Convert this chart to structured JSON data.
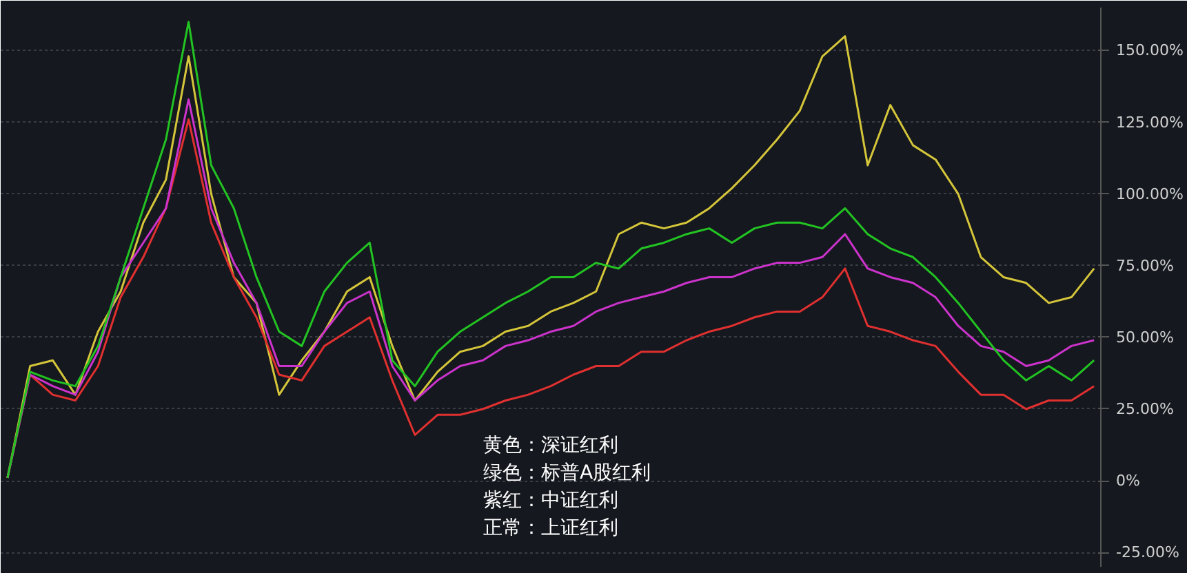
{
  "chart_data": {
    "type": "line",
    "categories": [
      null,
      null,
      null,
      null,
      null,
      null,
      null,
      null,
      null,
      null,
      null,
      null,
      null,
      null,
      null,
      null,
      null,
      null,
      null,
      null,
      null,
      null,
      null,
      null,
      null,
      null,
      null,
      null,
      null,
      null,
      null,
      null,
      null,
      null,
      null,
      null,
      null,
      null,
      null,
      null,
      null,
      null,
      null,
      null,
      null,
      null,
      null,
      null,
      null
    ],
    "series": [
      {
        "color": "#d4c53a",
        "values": [
          1,
          40,
          42,
          30,
          52,
          66,
          90,
          105,
          148,
          100,
          71,
          62,
          30,
          42,
          52,
          66,
          71,
          47,
          28,
          38,
          45,
          47,
          52,
          54,
          59,
          62,
          66,
          86,
          90,
          88,
          90,
          95,
          102,
          110,
          119,
          129,
          148,
          155,
          110,
          131,
          117,
          112,
          100,
          78,
          71,
          69,
          62,
          64,
          74
        ]
      },
      {
        "color": "#e03030",
        "values": [
          1,
          37,
          30,
          28,
          40,
          64,
          78,
          95,
          126,
          90,
          71,
          57,
          37,
          35,
          47,
          52,
          57,
          35,
          16,
          23,
          23,
          25,
          28,
          30,
          33,
          37,
          40,
          40,
          45,
          45,
          49,
          52,
          54,
          57,
          59,
          59,
          64,
          74,
          54,
          52,
          49,
          47,
          38,
          30,
          30,
          25,
          28,
          28,
          33
        ]
      },
      {
        "color": "#cc33cc",
        "values": [
          1,
          37,
          33,
          30,
          45,
          71,
          83,
          95,
          133,
          95,
          76,
          62,
          40,
          40,
          52,
          62,
          66,
          40,
          28,
          35,
          40,
          42,
          47,
          49,
          52,
          54,
          59,
          62,
          64,
          66,
          69,
          71,
          71,
          74,
          76,
          76,
          78,
          86,
          74,
          71,
          69,
          64,
          54,
          47,
          45,
          40,
          42,
          47,
          49
        ]
      },
      {
        "color": "#22c322",
        "values": [
          1,
          38,
          35,
          33,
          47,
          71,
          95,
          119,
          160,
          110,
          95,
          71,
          52,
          47,
          66,
          76,
          83,
          42,
          33,
          45,
          52,
          57,
          62,
          66,
          71,
          71,
          76,
          74,
          81,
          83,
          86,
          88,
          83,
          88,
          90,
          90,
          88,
          95,
          86,
          81,
          78,
          71,
          62,
          52,
          42,
          35,
          40,
          35,
          42
        ]
      }
    ],
    "ylim": [
      -30,
      165
    ],
    "yticks": [
      {
        "value": -25,
        "label": "-25.00%"
      },
      {
        "value": 0,
        "label": "0%"
      },
      {
        "value": 25,
        "label": "25.00%"
      },
      {
        "value": 50,
        "label": "50.00%"
      },
      {
        "value": 75,
        "label": "75.00%"
      },
      {
        "value": 100,
        "label": "100.00%"
      },
      {
        "value": 125,
        "label": "125.00%"
      },
      {
        "value": 150,
        "label": "150.00%"
      }
    ],
    "grid": "y",
    "tick_labels": "y",
    "annotations": [
      "黄色：深证红利",
      "绿色：标普A股红利",
      "紫红：中证红利",
      "正常：上证红利"
    ]
  }
}
